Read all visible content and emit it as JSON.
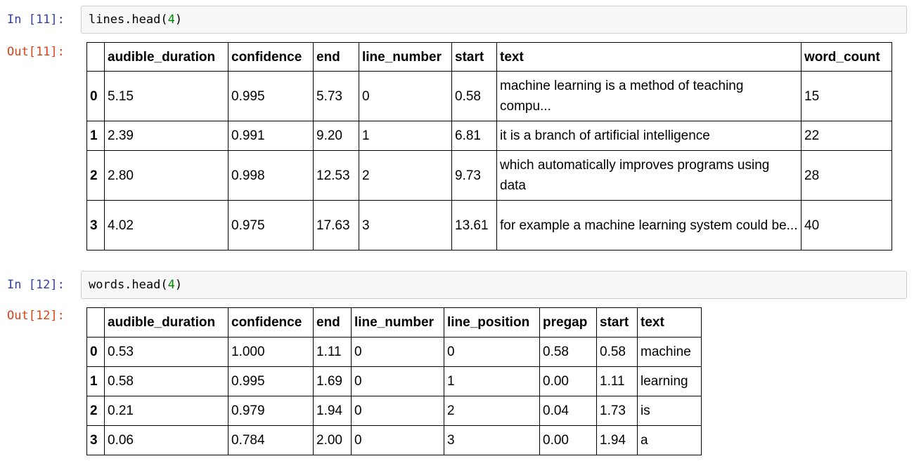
{
  "cell1": {
    "in_prompt": "In [11]:",
    "code_obj": "lines.head(",
    "code_arg": "4",
    "code_close": ")",
    "out_prompt": "Out[11]:",
    "table": {
      "columns": [
        "",
        "audible_duration",
        "confidence",
        "end",
        "line_number",
        "start",
        "text",
        "word_count"
      ],
      "rows": [
        {
          "index": "0",
          "cells": [
            "5.15",
            "0.995",
            "5.73",
            "0",
            "0.58",
            "machine learning is a method of teaching compu...",
            "15"
          ]
        },
        {
          "index": "1",
          "cells": [
            "2.39",
            "0.991",
            "9.20",
            "1",
            "6.81",
            "it is a branch of artificial intelligence",
            "22"
          ]
        },
        {
          "index": "2",
          "cells": [
            "2.80",
            "0.998",
            "12.53",
            "2",
            "9.73",
            "which automatically improves programs using data",
            "28"
          ]
        },
        {
          "index": "3",
          "cells": [
            "4.02",
            "0.975",
            "17.63",
            "3",
            "13.61",
            "for example a machine learning system could be...",
            "40"
          ]
        }
      ]
    }
  },
  "cell2": {
    "in_prompt": "In [12]:",
    "code_obj": "words.head(",
    "code_arg": "4",
    "code_close": ")",
    "out_prompt": "Out[12]:",
    "table": {
      "columns": [
        "",
        "audible_duration",
        "confidence",
        "end",
        "line_number",
        "line_position",
        "pregap",
        "start",
        "text"
      ],
      "rows": [
        {
          "index": "0",
          "cells": [
            "0.53",
            "1.000",
            "1.11",
            "0",
            "0",
            "0.58",
            "0.58",
            "machine"
          ]
        },
        {
          "index": "1",
          "cells": [
            "0.58",
            "0.995",
            "1.69",
            "0",
            "1",
            "0.00",
            "1.11",
            "learning"
          ]
        },
        {
          "index": "2",
          "cells": [
            "0.21",
            "0.979",
            "1.94",
            "0",
            "2",
            "0.04",
            "1.73",
            "is"
          ]
        },
        {
          "index": "3",
          "cells": [
            "0.06",
            "0.784",
            "2.00",
            "0",
            "3",
            "0.00",
            "1.94",
            "a"
          ]
        }
      ]
    }
  },
  "colors": {
    "in_prompt": "#303f9f",
    "out_prompt": "#d84315",
    "number_literal": "#008800",
    "input_background": "#f7f7f7"
  }
}
